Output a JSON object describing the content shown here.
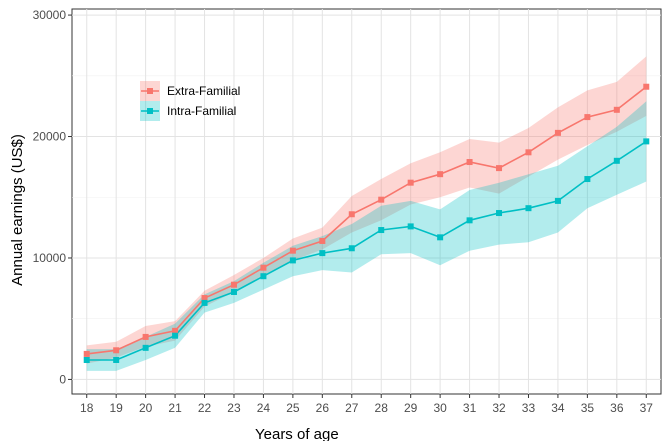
{
  "chart_data": {
    "type": "line",
    "title": "",
    "xlabel": "Years of age",
    "ylabel": "Annual earnings (US$)",
    "x": [
      18,
      19,
      20,
      21,
      22,
      23,
      24,
      25,
      26,
      27,
      28,
      29,
      30,
      31,
      32,
      33,
      34,
      35,
      36,
      37
    ],
    "xlim": [
      17.5,
      37.5
    ],
    "ylim": [
      -1200,
      30500
    ],
    "yticks": [
      0,
      10000,
      20000,
      30000
    ],
    "ytick_labels": [
      "0",
      "10000",
      "20000",
      "30000"
    ],
    "grid": true,
    "legend_position": "top-left",
    "series": [
      {
        "name": "Extra-Familial",
        "color": "#F8766D",
        "band_color": "#F8766D",
        "values": [
          2100,
          2400,
          3500,
          4000,
          6700,
          7800,
          9200,
          10600,
          11400,
          13600,
          14800,
          16200,
          16900,
          17900,
          17400,
          18700,
          20300,
          21600,
          22200,
          24100
        ],
        "lower": [
          1300,
          1800,
          2700,
          3200,
          6000,
          7200,
          8600,
          9800,
          10700,
          12100,
          13100,
          14400,
          15000,
          15800,
          15300,
          16700,
          18100,
          19300,
          20400,
          21700
        ],
        "upper": [
          2800,
          3100,
          4400,
          4800,
          7300,
          8600,
          10000,
          11600,
          12500,
          15100,
          16500,
          17800,
          18700,
          19800,
          19500,
          20700,
          22400,
          23800,
          24500,
          26600
        ]
      },
      {
        "name": "Intra-Familial",
        "color": "#00BFC4",
        "band_color": "#00BFC4",
        "values": [
          1600,
          1600,
          2600,
          3600,
          6300,
          7200,
          8500,
          9800,
          10400,
          10800,
          12300,
          12600,
          11700,
          13100,
          13700,
          14100,
          14700,
          16500,
          18000,
          19600
        ],
        "lower": [
          700,
          700,
          1600,
          2600,
          5500,
          6300,
          7400,
          8500,
          9000,
          8800,
          10300,
          10400,
          9400,
          10600,
          11100,
          11300,
          12100,
          14100,
          15200,
          16300
        ],
        "upper": [
          2500,
          2500,
          3500,
          4600,
          7000,
          8100,
          9600,
          11000,
          11800,
          12800,
          14300,
          14700,
          14000,
          15600,
          16200,
          16900,
          17600,
          19200,
          20800,
          22900
        ]
      }
    ]
  }
}
